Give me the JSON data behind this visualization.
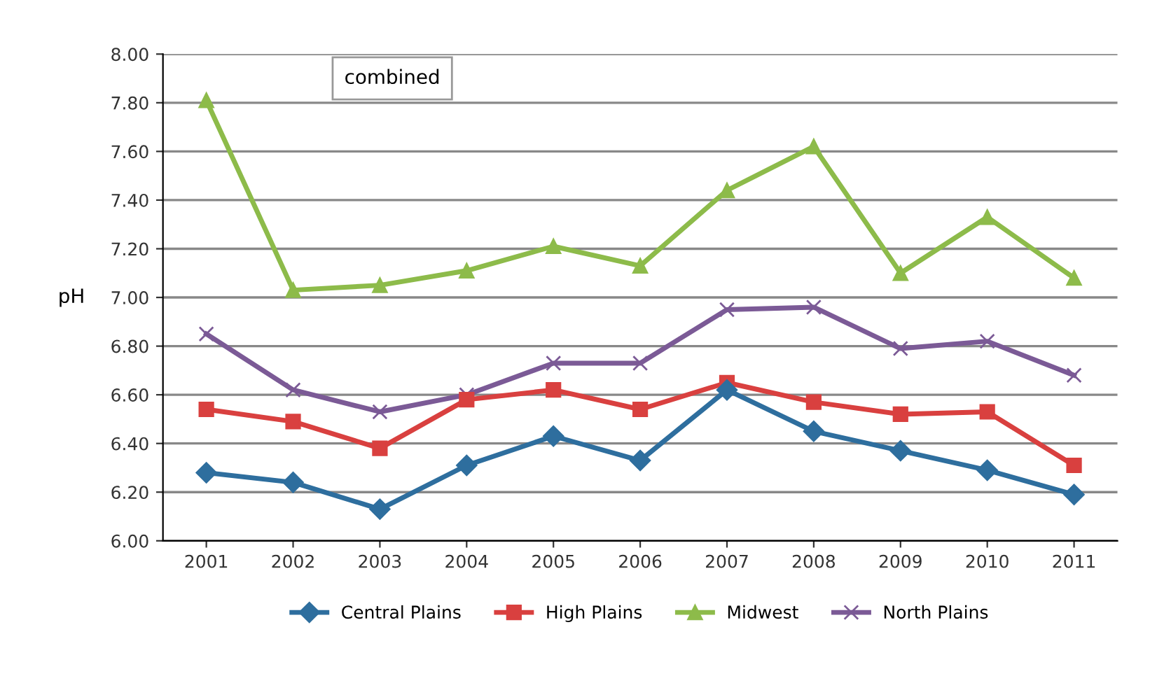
{
  "chart_data": {
    "type": "line",
    "title": "combined",
    "ylabel": "pH",
    "categories": [
      "2001",
      "2002",
      "2003",
      "2004",
      "2005",
      "2006",
      "2007",
      "2008",
      "2009",
      "2010",
      "2011"
    ],
    "series": [
      {
        "name": "Central Plains",
        "color": "#2e6e9e",
        "marker": "diamond",
        "values": [
          6.28,
          6.24,
          6.13,
          6.31,
          6.43,
          6.33,
          6.62,
          6.45,
          6.37,
          6.29,
          6.19
        ]
      },
      {
        "name": "High Plains",
        "color": "#d9403f",
        "marker": "square",
        "values": [
          6.54,
          6.49,
          6.38,
          6.58,
          6.62,
          6.54,
          6.65,
          6.57,
          6.52,
          6.53,
          6.31
        ]
      },
      {
        "name": "Midwest",
        "color": "#8dbb4a",
        "marker": "triangle",
        "values": [
          7.81,
          7.03,
          7.05,
          7.11,
          7.21,
          7.13,
          7.44,
          7.62,
          7.1,
          7.33,
          7.08
        ]
      },
      {
        "name": "North Plains",
        "color": "#7b5a96",
        "marker": "cross",
        "values": [
          6.85,
          6.62,
          6.53,
          6.6,
          6.73,
          6.73,
          6.95,
          6.96,
          6.79,
          6.82,
          6.68
        ]
      }
    ],
    "ylim": [
      6.0,
      8.0
    ],
    "yticks": [
      {
        "value": 6.0,
        "label": "6.00"
      },
      {
        "value": 6.2,
        "label": "6.20"
      },
      {
        "value": 6.4,
        "label": "6.40"
      },
      {
        "value": 6.6,
        "label": "6.60"
      },
      {
        "value": 6.8,
        "label": "6.80"
      },
      {
        "value": 7.0,
        "label": "7.00"
      },
      {
        "value": 7.2,
        "label": "7.20"
      },
      {
        "value": 7.4,
        "label": "7.40"
      },
      {
        "value": 7.6,
        "label": "7.60"
      },
      {
        "value": 7.8,
        "label": "7.80"
      },
      {
        "value": 8.0,
        "label": "8.00"
      }
    ],
    "grid": "y",
    "legend": "bottom",
    "line_style": "solid"
  }
}
